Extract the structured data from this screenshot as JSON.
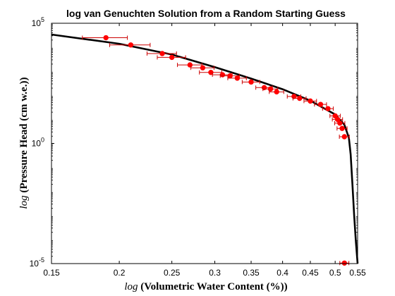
{
  "chart_data": {
    "type": "scatter",
    "title": "log van Genuchten Solution from a Random Starting Guess",
    "xlabel_prefix": "log",
    "xlabel": "(Volumetric Water Content (%))",
    "ylabel_prefix": "log",
    "ylabel": "(Pressure Head (cm w.e.))",
    "x_scale": "log",
    "y_scale": "log",
    "xlim": [
      0.15,
      0.55
    ],
    "ylim": [
      1e-05,
      100000
    ],
    "xticks": [
      {
        "value": 0.15,
        "label": "0.15"
      },
      {
        "value": 0.2,
        "label": "0.2"
      },
      {
        "value": 0.25,
        "label": "0.25"
      },
      {
        "value": 0.3,
        "label": "0.3"
      },
      {
        "value": 0.35,
        "label": "0.35"
      },
      {
        "value": 0.4,
        "label": "0.4"
      },
      {
        "value": 0.45,
        "label": "0.45"
      },
      {
        "value": 0.5,
        "label": "0.5"
      },
      {
        "value": 0.55,
        "label": "0.55"
      }
    ],
    "yticks": [
      {
        "value": 1e-05,
        "base": "10",
        "exp": "-5"
      },
      {
        "value": 1,
        "base": "10",
        "exp": "0"
      },
      {
        "value": 100000,
        "base": "10",
        "exp": "5"
      }
    ],
    "grid": false,
    "legend": "none",
    "colors": {
      "observed": "#ff0000",
      "errorbar": "#cc0000",
      "fit": "#000000"
    },
    "series": [
      {
        "marker": "filled circle",
        "points": [
          {
            "x": 0.189,
            "y": 25000,
            "xerr": 0.018
          },
          {
            "x": 0.21,
            "y": 12500,
            "xerr": 0.018
          },
          {
            "x": 0.24,
            "y": 5500,
            "xerr": 0.015
          },
          {
            "x": 0.25,
            "y": 3800,
            "xerr": 0.015
          },
          {
            "x": 0.27,
            "y": 1850,
            "xerr": 0.014
          },
          {
            "x": 0.285,
            "y": 1400,
            "xerr": 0.014
          },
          {
            "x": 0.295,
            "y": 900,
            "xerr": 0.014
          },
          {
            "x": 0.31,
            "y": 720,
            "xerr": 0.013
          },
          {
            "x": 0.32,
            "y": 650,
            "xerr": 0.013
          },
          {
            "x": 0.33,
            "y": 520,
            "xerr": 0.013
          },
          {
            "x": 0.35,
            "y": 360,
            "xerr": 0.013
          },
          {
            "x": 0.37,
            "y": 210,
            "xerr": 0.013
          },
          {
            "x": 0.38,
            "y": 185,
            "xerr": 0.012
          },
          {
            "x": 0.39,
            "y": 140,
            "xerr": 0.012
          },
          {
            "x": 0.42,
            "y": 90,
            "xerr": 0.012
          },
          {
            "x": 0.43,
            "y": 75,
            "xerr": 0.012
          },
          {
            "x": 0.45,
            "y": 58,
            "xerr": 0.012
          },
          {
            "x": 0.47,
            "y": 42,
            "xerr": 0.012
          },
          {
            "x": 0.485,
            "y": 28,
            "xerr": 0.011
          },
          {
            "x": 0.5,
            "y": 14,
            "xerr": 0.011
          },
          {
            "x": 0.505,
            "y": 10,
            "xerr": 0.011
          },
          {
            "x": 0.51,
            "y": 7,
            "xerr": 0.011
          },
          {
            "x": 0.515,
            "y": 4.2,
            "xerr": 0.011
          },
          {
            "x": 0.52,
            "y": 1.9,
            "xerr": 0.011
          },
          {
            "x": 0.52,
            "y": 1.05e-05,
            "xerr": 0.01
          }
        ]
      },
      {
        "style": "solid line",
        "points": [
          {
            "x": 0.15,
            "y": 34000
          },
          {
            "x": 0.2,
            "y": 14000
          },
          {
            "x": 0.25,
            "y": 5000
          },
          {
            "x": 0.3,
            "y": 1500
          },
          {
            "x": 0.35,
            "y": 500
          },
          {
            "x": 0.4,
            "y": 180
          },
          {
            "x": 0.45,
            "y": 60
          },
          {
            "x": 0.5,
            "y": 16
          },
          {
            "x": 0.52,
            "y": 6
          },
          {
            "x": 0.53,
            "y": 1.7
          },
          {
            "x": 0.534,
            "y": 0.35
          },
          {
            "x": 0.538,
            "y": 0.02
          },
          {
            "x": 0.542,
            "y": 0.001
          },
          {
            "x": 0.546,
            "y": 8e-05
          },
          {
            "x": 0.55,
            "y": 1e-05
          }
        ]
      }
    ]
  }
}
